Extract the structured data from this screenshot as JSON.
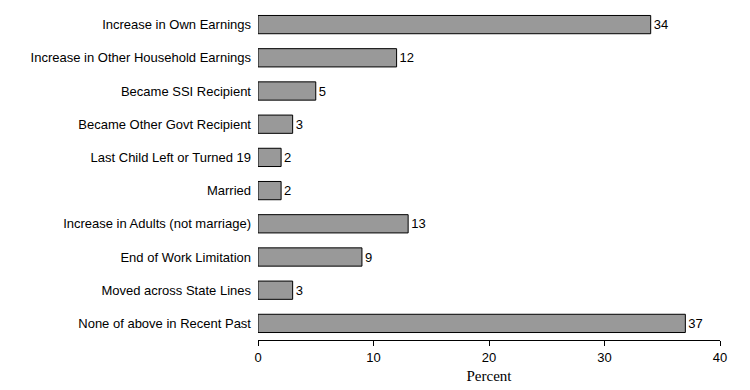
{
  "chart_data": {
    "type": "bar",
    "orientation": "horizontal",
    "categories": [
      "Increase in Own Earnings",
      "Increase in Other Household Earnings",
      "Became SSI Recipient",
      "Became Other Govt Recipient",
      "Last Child Left or Turned 19",
      "Married",
      "Increase in Adults (not marriage)",
      "End of Work Limitation",
      "Moved across State Lines",
      "None of above in Recent Past"
    ],
    "values": [
      34,
      12,
      5,
      3,
      2,
      2,
      13,
      9,
      3,
      37
    ],
    "color": "#999999",
    "xlabel": "Percent",
    "xlim": [
      0,
      40
    ],
    "xticks": [
      0,
      10,
      20,
      30,
      40
    ],
    "grid": false,
    "data_labels": true
  }
}
